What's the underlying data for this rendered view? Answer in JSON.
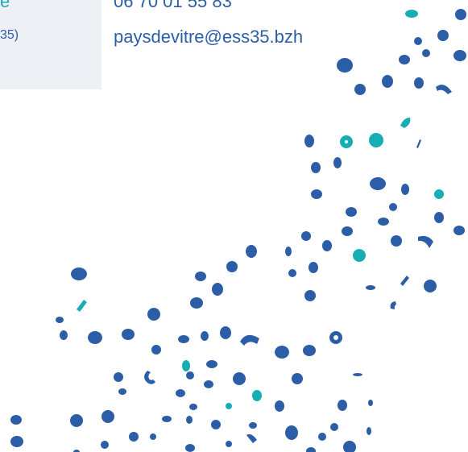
{
  "info_panel": {
    "title_fragment": "e",
    "subtitle_fragment": "35)"
  },
  "contact": {
    "phone": "06 70 01 55 83",
    "email": "paysdevitre@ess35.bzh"
  },
  "colors": {
    "dot_blue": "#2c5ea8",
    "dot_teal": "#17aeb3",
    "panel_bg": "#eef0f6"
  },
  "decoration": {
    "icon": "scattered-dots-pattern-icon"
  }
}
